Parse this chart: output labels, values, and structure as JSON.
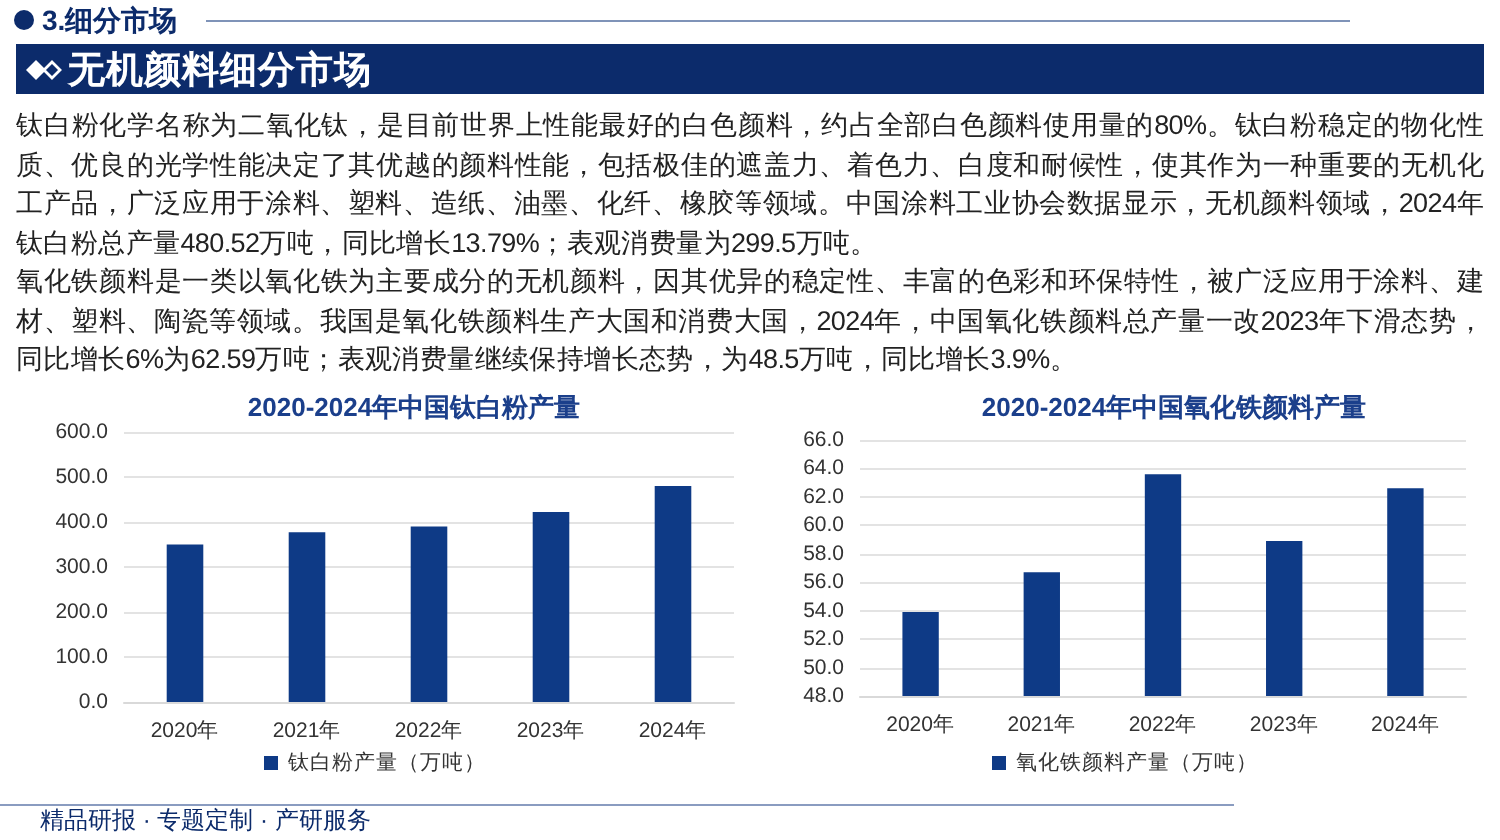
{
  "chart_data": [
    {
      "type": "other",
      "title": "无机颜料细分市场",
      "annotations": [
        "3.细分市场",
        "钛白粉化学名称为二氧化钛，是目前世界上性能最好的白色颜料，约占全部白色颜料使用量的80%。钛白粉稳定的物化性质、优良的光学性能决定了其优越的颜料性能，包括极佳的遮盖力、着色力、白度和耐候性，使其作为一种重要的无机化工产品，广泛应用于涂料、塑料、造纸、油墨、化纤、橡胶等领域。中国涂料工业协会数据显示，无机颜料领域，2024年钛白粉总产量480.52万吨，同比增长13.79%；表观消费量为299.5万吨。",
        "氧化铁颜料是一类以氧化铁为主要成分的无机颜料，因其优异的稳定性、丰富的色彩和环保特性，被广泛应用于涂料、建材、塑料、陶瓷等领域。我国是氧化铁颜料生产大国和消费大国，2024年，中国氧化铁颜料总产量一改2023年下滑态势，同比增长6%为62.59万吨；表观消费量继续保持增长态势，为48.5万吨，同比增长3.9%。"
      ]
    },
    {
      "type": "bar",
      "title": "2020-2024年中国钛白粉产量",
      "categories": [
        "2020年",
        "2021年",
        "2022年",
        "2023年",
        "2024年"
      ],
      "series": [
        {
          "name": "钛白粉产量（万吨）",
          "color": "#0e3a86",
          "values": [
            350,
            377,
            390,
            422,
            480
          ]
        }
      ],
      "ylim": [
        0,
        600
      ],
      "yticks": [
        {
          "value": 0,
          "label": "0.0"
        },
        {
          "value": 100,
          "label": "100.0"
        },
        {
          "value": 200,
          "label": "200.0"
        },
        {
          "value": 300,
          "label": "300.0"
        },
        {
          "value": 400,
          "label": "400.0"
        },
        {
          "value": 500,
          "label": "500.0"
        },
        {
          "value": 600,
          "label": "600.0"
        }
      ],
      "grid": "y",
      "legend": "bottom",
      "annotations": [
        "精品研报 · 专题定制 · 产研服务"
      ]
    },
    {
      "type": "bar",
      "title": "2020-2024年中国氧化铁颜料产量",
      "categories": [
        "2020年",
        "2021年",
        "2022年",
        "2023年",
        "2024年"
      ],
      "series": [
        {
          "name": "氧化铁颜料产量（万吨）",
          "color": "#0e3a86",
          "values": [
            53.9,
            56.7,
            63.6,
            58.9,
            62.6
          ]
        }
      ],
      "ylim": [
        48,
        66
      ],
      "yticks": [
        {
          "value": 48,
          "label": "48.0"
        },
        {
          "value": 50,
          "label": "50.0"
        },
        {
          "value": 52,
          "label": "52.0"
        },
        {
          "value": 54,
          "label": "54.0"
        },
        {
          "value": 56,
          "label": "56.0"
        },
        {
          "value": 58,
          "label": "58.0"
        },
        {
          "value": 60,
          "label": "60.0"
        },
        {
          "value": 62,
          "label": "62.0"
        },
        {
          "value": 64,
          "label": "64.0"
        },
        {
          "value": 66,
          "label": "66.0"
        }
      ],
      "grid": "y",
      "legend": "bottom"
    }
  ]
}
